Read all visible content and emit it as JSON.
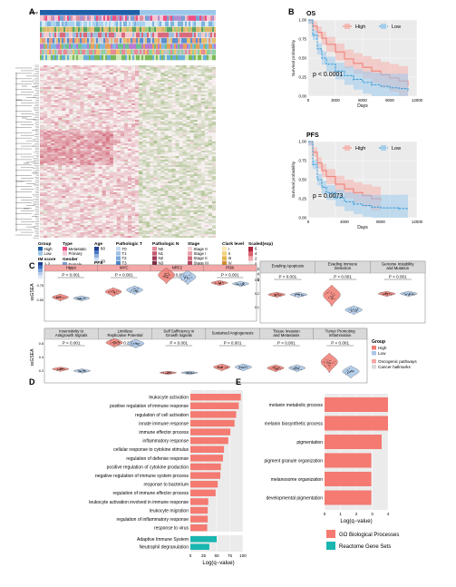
{
  "colors": {
    "high": "#f07c73",
    "low": "#2f9ad8",
    "high_fill": "#f6b3ad",
    "low_fill": "#9ccbed",
    "go": "#f47a72",
    "reactome": "#1ab6b0",
    "heat_pos": "#c94a5f",
    "heat_neg": "#6d9a3e"
  },
  "panel_labels": {
    "a": "A",
    "b": "B",
    "c": "C",
    "d": "D",
    "e": "E"
  },
  "legend_a": {
    "group": {
      "title": "Group",
      "items": [
        "High",
        "Low"
      ]
    },
    "ims": {
      "title": "IM score",
      "ticks": [
        "1.2",
        "0.8",
        "0.4"
      ]
    },
    "type": {
      "title": "Type",
      "items": [
        "Metastatic",
        "Primary"
      ]
    },
    "gender": {
      "title": "Gender",
      "items": [
        "Female",
        "Male"
      ]
    },
    "os": {
      "title": "OS",
      "items": [
        "Dead",
        "Alive"
      ]
    },
    "age": {
      "title": "Age",
      "ticks": [
        "80",
        "20"
      ]
    },
    "pfs": {
      "title": "PFS",
      "items": [
        "Dead",
        "Alive"
      ]
    },
    "patho_t": {
      "title": "Pathologic T",
      "items": [
        "T0",
        "T1",
        "T2",
        "T3",
        "T4",
        "Tis",
        "TX",
        "NULL"
      ]
    },
    "patho_n": {
      "title": "Pathologic N",
      "items": [
        "N0",
        "N1",
        "N2",
        "N3",
        "NX",
        "NULL"
      ]
    },
    "patho_m": {
      "title": "Pathologic M",
      "items": [
        "M1",
        "M0",
        "NULL"
      ]
    },
    "stage": {
      "title": "Stage",
      "items": [
        "Stage 0",
        "Stage I",
        "Stage II",
        "Stage III",
        "Stage IV",
        "I/II NOS",
        "NULL"
      ]
    },
    "clark": {
      "title": "Clark level",
      "items": [
        "I",
        "II",
        "III",
        "IV",
        "V",
        "NULL"
      ]
    },
    "scaled": {
      "title": "Scaled(exp)",
      "ticks": [
        "6",
        "4",
        "2",
        "0",
        "−2",
        "−4",
        "−6"
      ]
    }
  },
  "panel_b": [
    {
      "title": "OS",
      "ylabel": "Survival probability",
      "xlabel": "Days",
      "xticks": [
        "0",
        "3000",
        "6000",
        "9000",
        "12000"
      ],
      "yticks": [
        "0.00",
        "0.25",
        "0.50",
        "0.75",
        "1.00"
      ],
      "legend": [
        "High",
        "Low"
      ],
      "pvalue": "p < 0.0001"
    },
    {
      "title": "PFS",
      "ylabel": "Survival probability",
      "xlabel": "Days",
      "xticks": [
        "0",
        "4000",
        "8000",
        "12000"
      ],
      "yticks": [
        "0.00",
        "0.25",
        "0.50",
        "0.75",
        "1.00"
      ],
      "legend": [
        "High",
        "Low"
      ],
      "pvalue": "p = 0.0073"
    }
  ],
  "panel_c": {
    "ylabel": "ssGSEA",
    "row1_strips": [
      "Hippo",
      "MYC",
      "NRF2",
      "PI3K",
      "Evading Apoptosis",
      "Evading Immune Detection",
      "Genome Instability and Mutation"
    ],
    "row2_strips": [
      "Insensitivity to Antigrowth Signals",
      "Limitless Replicative Potential",
      "Self Sufficiency in Growth Signals",
      "Sustained Angiogenesis",
      "Tissue Invasion and Metastasis",
      "Tumor Promoting Inflammation"
    ],
    "pvals_row1": [
      "P < 0.001",
      "P < 0.001",
      "P < 0.001",
      "P < 0.001",
      "P < 0.001",
      "P < 0.001",
      "P < 0.001"
    ],
    "pvals_row2": [
      "P < 0.001",
      "P = 0.233",
      "P < 0.001",
      "P < 0.001",
      "P < 0.001",
      "P < 0.001"
    ],
    "yticks_left": [
      "0.50",
      "0.75"
    ],
    "yticks_mid": [
      "0.3",
      "0.2",
      "0.1"
    ],
    "yticks_row2": [
      "0.6",
      "0.4",
      "0.2"
    ],
    "legend_group": {
      "title": "Group",
      "items": [
        "High",
        "Low"
      ]
    },
    "legend_type": {
      "items": [
        "Oncogenic pathways",
        "Cancer hallmarks"
      ]
    }
  },
  "panel_d": {
    "xlabel": "Log(q−value)",
    "xticks": [
      "0",
      "25",
      "50",
      "75",
      "100"
    ],
    "go_terms": [
      "leukocyte activation",
      "positive regulation of immune response",
      "regulation of cell activation",
      "innate immune response",
      "immune effector process",
      "inflammatory response",
      "cellular response to cytokine stimulus",
      "regulation of defense response",
      "positive regulation of cytokine production",
      "negative regulation of immune system process",
      "response to bacterium",
      "regulation of immune effector process",
      "leukocyte activation involved in immune response",
      "leukocyte migration",
      "regulation of inflammatory response",
      "response to virus"
    ],
    "reactome_terms": [
      "Adaptive Immune System",
      "Neutrophil degranulation"
    ]
  },
  "panel_e": {
    "xlabel": "Log(q−value)",
    "xticks": [
      "0",
      "1",
      "2",
      "3",
      "4"
    ],
    "terms": [
      "melanin metabolic process",
      "melanin biosynthetic process",
      "pigmentation",
      "pigment granule organization",
      "melanosome organization",
      "developmental pigmentation"
    ]
  },
  "legend_de": {
    "items": [
      "GO Biological Processes",
      "Reactome Gene Sets"
    ]
  },
  "chart_data": [
    {
      "type": "bar",
      "panel": "D",
      "title": "",
      "xlabel": "Log(q−value)",
      "xlim": [
        0,
        100
      ],
      "series": [
        {
          "name": "GO Biological Processes",
          "categories": [
            "leukocyte activation",
            "positive regulation of immune response",
            "regulation of cell activation",
            "innate immune response",
            "immune effector process",
            "inflammatory response",
            "cellular response to cytokine stimulus",
            "regulation of defense response",
            "positive regulation of cytokine production",
            "negative regulation of immune system process",
            "response to bacterium",
            "regulation of immune effector process",
            "leukocyte activation involved in immune response",
            "leukocyte migration",
            "regulation of inflammatory response",
            "response to virus"
          ],
          "values": [
            96,
            92,
            87,
            84,
            76,
            72,
            64,
            62,
            58,
            57,
            52,
            48,
            34,
            33,
            33,
            32
          ]
        },
        {
          "name": "Reactome Gene Sets",
          "categories": [
            "Adaptive Immune System",
            "Neutrophil degranulation"
          ],
          "values": [
            50,
            36
          ]
        }
      ]
    },
    {
      "type": "bar",
      "panel": "E",
      "xlabel": "Log(q−value)",
      "xlim": [
        0,
        4
      ],
      "categories": [
        "melanin metabolic process",
        "melanin biosynthetic process",
        "pigmentation",
        "pigment granule organization",
        "melanosome organization",
        "developmental pigmentation"
      ],
      "values": [
        4.0,
        4.0,
        3.6,
        2.95,
        2.95,
        2.95
      ]
    },
    {
      "type": "line",
      "panel": "B-OS",
      "xlabel": "Days",
      "ylabel": "Survival probability",
      "xlim": [
        0,
        12000
      ],
      "ylim": [
        0,
        1
      ],
      "series": [
        {
          "name": "High",
          "x": [
            0,
            500,
            1000,
            1500,
            2000,
            3000,
            4000,
            5000,
            6000,
            7000,
            8000,
            9000,
            10000,
            11000
          ],
          "y": [
            1.0,
            0.92,
            0.84,
            0.76,
            0.68,
            0.58,
            0.49,
            0.43,
            0.38,
            0.33,
            0.28,
            0.24,
            0.2,
            0.14
          ]
        },
        {
          "name": "Low",
          "x": [
            0,
            500,
            1000,
            1500,
            2000,
            3000,
            4000,
            5000,
            6000,
            7000,
            8000,
            9000,
            10000,
            11000
          ],
          "y": [
            1.0,
            0.8,
            0.62,
            0.5,
            0.42,
            0.33,
            0.27,
            0.22,
            0.18,
            0.15,
            0.13,
            0.11,
            0.1,
            0.08
          ]
        }
      ]
    },
    {
      "type": "line",
      "panel": "B-PFS",
      "xlabel": "Days",
      "ylabel": "Survival probability",
      "xlim": [
        0,
        12000
      ],
      "ylim": [
        0,
        1
      ],
      "series": [
        {
          "name": "High",
          "x": [
            0,
            500,
            1000,
            1500,
            2000,
            3000,
            4000,
            5000,
            6000,
            7000,
            8000
          ],
          "y": [
            1.0,
            0.86,
            0.72,
            0.62,
            0.54,
            0.44,
            0.38,
            0.33,
            0.29,
            0.25,
            0.22
          ]
        },
        {
          "name": "Low",
          "x": [
            0,
            500,
            1000,
            1500,
            2000,
            3000,
            4000,
            5000,
            6000,
            7000,
            8000,
            10000,
            11000
          ],
          "y": [
            1.0,
            0.7,
            0.5,
            0.4,
            0.33,
            0.26,
            0.21,
            0.18,
            0.16,
            0.14,
            0.13,
            0.12,
            0.12
          ]
        }
      ]
    },
    {
      "type": "violin",
      "panel": "C",
      "ylabel": "ssGSEA",
      "categories": [
        "Hippo",
        "MYC",
        "NRF2",
        "PI3K",
        "Evading Apoptosis",
        "Evading Immune Detection",
        "Genome Instability and Mutation",
        "Insensitivity to Antigrowth Signals",
        "Limitless Replicative Potential",
        "Self Sufficiency in Growth Signals",
        "Sustained Angiogenesis",
        "Tissue Invasion and Metastasis",
        "Tumor Promoting Inflammation"
      ],
      "series": [
        {
          "name": "High",
          "median": [
            0.53,
            0.57,
            0.82,
            0.63,
            0.25,
            0.32,
            0.22,
            0.27,
            0.55,
            0.22,
            0.36,
            0.33,
            0.45
          ]
        },
        {
          "name": "Low",
          "median": [
            0.49,
            0.62,
            0.8,
            0.62,
            0.27,
            0.16,
            0.26,
            0.22,
            0.56,
            0.18,
            0.35,
            0.3,
            0.25
          ]
        }
      ]
    }
  ]
}
